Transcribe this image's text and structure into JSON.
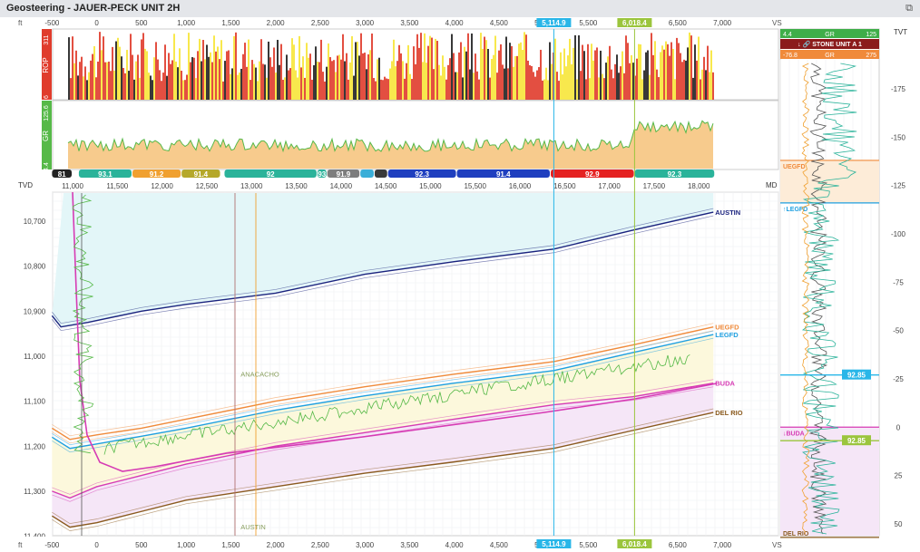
{
  "window": {
    "title": "Geosteering - JAUER-PECK UNIT 2H"
  },
  "colors": {
    "austin": "#1a237e",
    "uegfd": "#f08a3a",
    "legfd": "#1e9fe0",
    "buda": "#d63bb4",
    "delrio": "#8a5a1e",
    "vs_marker": "#29b6e8",
    "vs_marker2": "#9bc53d",
    "gr_curve": "#56b948",
    "gr_fill": "#f0a030",
    "rop_red": "#e03c2c",
    "rop_yellow": "#f7e53a",
    "rop_dark": "#222222",
    "pick_teal": "#2ab39a",
    "pick_orange": "#f0a030",
    "pick_olive": "#b5a82a",
    "pick_blue": "#1f3fbf",
    "pick_red": "#e52222",
    "pick_grey": "#7d7d7d",
    "pick_cyan": "#3aaed8",
    "zone_cyan": "#e3f6f8",
    "zone_yellow": "#fcf8dc",
    "zone_purple": "#f5e6f7"
  },
  "chart_data": {
    "type": "line",
    "title": "",
    "vs_axis": {
      "unit": "ft",
      "label": "VS",
      "ticks": [
        "-500",
        "0",
        "500",
        "1,000",
        "1,500",
        "2,000",
        "2,500",
        "3,000",
        "3,500",
        "4,000",
        "4,500",
        "5,000",
        "5,500",
        "6,000",
        "6,500",
        "7,000"
      ],
      "range": [
        -600,
        7400
      ]
    },
    "vs_markers": [
      {
        "label": "5,114.9",
        "vs": 5114.9
      },
      {
        "label": "6,018.4",
        "vs": 6018.4
      }
    ],
    "md_axis": {
      "label": "MD",
      "ticks": [
        "11,000",
        "11,500",
        "12,000",
        "12,500",
        "13,000",
        "13,500",
        "14,000",
        "14,500",
        "15,000",
        "15,500",
        "16,000",
        "16,500",
        "17,000",
        "17,500",
        "18,000"
      ]
    },
    "tvd_axis": {
      "label": "TVD",
      "unit": "ft",
      "ticks": [
        "10,700",
        "10,800",
        "10,900",
        "11,000",
        "11,100",
        "11,200",
        "11,300",
        "11,400"
      ],
      "range": [
        10620,
        11400
      ]
    },
    "rop_track": {
      "label": "ROP",
      "min_label": "6",
      "max_label": "311"
    },
    "gr_track": {
      "label": "GR",
      "min_label": "4.4",
      "max_label": "125.6"
    },
    "dip_segments": [
      {
        "label": "81",
        "start": -500,
        "end": -280,
        "color": "#222222"
      },
      {
        "label": "93.1",
        "start": -200,
        "end": 390,
        "color": "#2ab39a"
      },
      {
        "label": "91.2",
        "start": 400,
        "end": 940,
        "color": "#f0a030"
      },
      {
        "label": "91.4",
        "start": 950,
        "end": 1380,
        "color": "#b5a82a"
      },
      {
        "label": "92",
        "start": 1430,
        "end": 2460,
        "color": "#2ab39a"
      },
      {
        "label": "93",
        "start": 2470,
        "end": 2570,
        "color": "#2ab39a"
      },
      {
        "label": "91.9",
        "start": 2580,
        "end": 2940,
        "color": "#7d7d7d"
      },
      {
        "label": "",
        "start": 2950,
        "end": 3100,
        "color": "#3aaed8"
      },
      {
        "label": "",
        "start": 3110,
        "end": 3250,
        "color": "#3a3a3a"
      },
      {
        "label": "92.3",
        "start": 3260,
        "end": 4020,
        "color": "#1f3fbf"
      },
      {
        "label": "91.4",
        "start": 4030,
        "end": 5070,
        "color": "#1f3fbf"
      },
      {
        "label": "92.9",
        "start": 5080,
        "end": 6010,
        "color": "#e52222"
      },
      {
        "label": "92.3",
        "start": 6020,
        "end": 6910,
        "color": "#2ab39a"
      }
    ],
    "formations": [
      {
        "name": "AUSTIN",
        "x": [
          -500,
          -400,
          -100,
          500,
          1000,
          2000,
          3000,
          4000,
          5115,
          6000,
          6900
        ],
        "y": [
          10910,
          10935,
          10925,
          10900,
          10885,
          10860,
          10818,
          10790,
          10762,
          10720,
          10680
        ]
      },
      {
        "name": "UEGFD",
        "x": [
          -500,
          -300,
          0,
          500,
          1000,
          2000,
          3000,
          4000,
          5115,
          6000,
          6900
        ],
        "y": [
          11160,
          11185,
          11175,
          11160,
          11140,
          11100,
          11068,
          11040,
          11012,
          10975,
          10935
        ]
      },
      {
        "name": "LEGFD",
        "x": [
          -500,
          -300,
          0,
          500,
          1000,
          2000,
          3000,
          4000,
          5115,
          6000,
          6900
        ],
        "y": [
          11180,
          11205,
          11195,
          11178,
          11160,
          11120,
          11088,
          11060,
          11032,
          10992,
          10952
        ]
      },
      {
        "name": "BUDA",
        "x": [
          -500,
          -300,
          0,
          500,
          1000,
          2000,
          3000,
          4000,
          5115,
          6000,
          6900
        ],
        "y": [
          11300,
          11315,
          11290,
          11265,
          11240,
          11200,
          11170,
          11140,
          11108,
          11090,
          11060
        ]
      },
      {
        "name": "DEL RIO",
        "x": [
          -500,
          -300,
          0,
          500,
          1000,
          2000,
          3000,
          4000,
          5115,
          6000,
          6900
        ],
        "y": [
          11355,
          11380,
          11370,
          11345,
          11320,
          11290,
          11260,
          11235,
          11205,
          11165,
          11125
        ]
      }
    ],
    "vertical_section_labels": [
      {
        "text": "ANACACHO",
        "x": 1560,
        "y": 11045
      },
      {
        "text": "AUSTIN",
        "x": 1560,
        "y": 11385
      }
    ]
  },
  "tvt_panel": {
    "gr_min": "4.4",
    "gr_label": "GR",
    "gr_max": "125",
    "stone_label": "STONE UNIT A 1",
    "gr2_min": "-76.8",
    "gr2_label": "GR",
    "gr2_max": "275",
    "axis_label": "TVT",
    "ticks": [
      "-175",
      "-150",
      "-125",
      "-100",
      "-75",
      "-50",
      "-25",
      "0",
      "25",
      "50"
    ],
    "formation_labels": [
      "UEGFD",
      "LEGFD",
      "BUDA",
      "DEL RIO"
    ],
    "value_badges": [
      "92.85",
      "92.85"
    ]
  }
}
